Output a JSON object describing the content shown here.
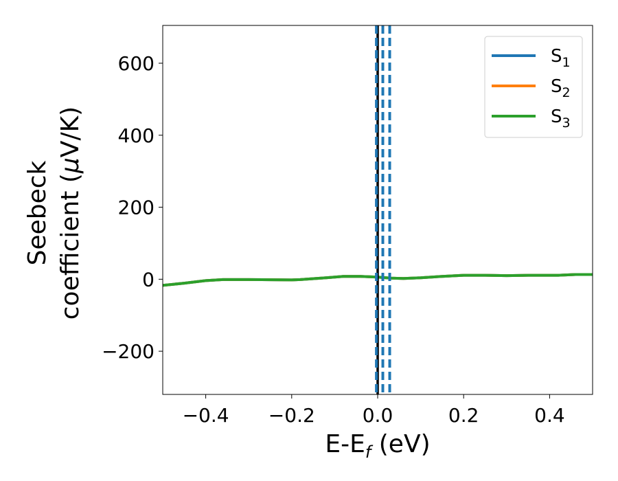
{
  "chart_data": {
    "type": "line",
    "title": "",
    "xlabel": "E-E",
    "xlabel_sub": "f",
    "xlabel_unit": " (eV)",
    "ylabel_line1": "Seebeck",
    "ylabel_line2": "coefficient  (",
    "ylabel_mu": "μ",
    "ylabel_unit": "V/K)",
    "xlim": [
      -0.5,
      0.5
    ],
    "ylim": [
      -320,
      705
    ],
    "xticks": [
      -0.4,
      -0.2,
      0.0,
      0.2,
      0.4
    ],
    "xtick_labels": [
      "−0.4",
      "−0.2",
      "0.0",
      "0.2",
      "0.4"
    ],
    "yticks": [
      -200,
      0,
      200,
      400,
      600
    ],
    "ytick_labels": [
      "−200",
      "0",
      "200",
      "400",
      "600"
    ],
    "grid": false,
    "legend_position": "top-right",
    "series": [
      {
        "name": "S",
        "name_sub": "1",
        "color": "#1f77b4",
        "x": [
          -0.5,
          -0.45,
          -0.4,
          -0.36,
          -0.3,
          -0.2,
          -0.18,
          -0.12,
          -0.08,
          -0.04,
          0.0,
          0.03,
          0.06,
          0.1,
          0.15,
          0.2,
          0.25,
          0.3,
          0.35,
          0.42,
          0.46,
          0.5
        ],
        "y": [
          -17,
          -11,
          -4,
          -1,
          -1,
          -2,
          -1,
          4,
          8,
          8,
          6,
          3,
          2,
          4,
          8,
          11,
          11,
          10,
          11,
          11,
          13,
          13
        ]
      },
      {
        "name": "S",
        "name_sub": "2",
        "color": "#ff7f0e",
        "x": [
          -0.5,
          -0.45,
          -0.4,
          -0.36,
          -0.3,
          -0.2,
          -0.18,
          -0.12,
          -0.08,
          -0.04,
          0.0,
          0.03,
          0.06,
          0.1,
          0.15,
          0.2,
          0.25,
          0.3,
          0.35,
          0.42,
          0.46,
          0.5
        ],
        "y": [
          -17,
          -11,
          -4,
          -1,
          -1,
          -2,
          -1,
          4,
          8,
          8,
          6,
          3,
          2,
          4,
          8,
          11,
          11,
          10,
          11,
          11,
          13,
          13
        ]
      },
      {
        "name": "S",
        "name_sub": "3",
        "color": "#2ca02c",
        "x": [
          -0.5,
          -0.45,
          -0.4,
          -0.36,
          -0.3,
          -0.2,
          -0.18,
          -0.12,
          -0.08,
          -0.04,
          0.0,
          0.03,
          0.06,
          0.1,
          0.15,
          0.2,
          0.25,
          0.3,
          0.35,
          0.42,
          0.46,
          0.5
        ],
        "y": [
          -17,
          -11,
          -4,
          -1,
          -1,
          -2,
          -1,
          4,
          8,
          8,
          6,
          3,
          2,
          4,
          8,
          11,
          11,
          10,
          11,
          11,
          13,
          13
        ]
      }
    ],
    "vertical_lines": [
      {
        "x": 0.0,
        "style": "solid",
        "color": "#000000"
      },
      {
        "x": -0.003,
        "style": "dashed",
        "color": "#1f77b4"
      },
      {
        "x": 0.012,
        "style": "dashed",
        "color": "#1f77b4"
      },
      {
        "x": 0.028,
        "style": "dashed",
        "color": "#1f77b4"
      }
    ]
  }
}
